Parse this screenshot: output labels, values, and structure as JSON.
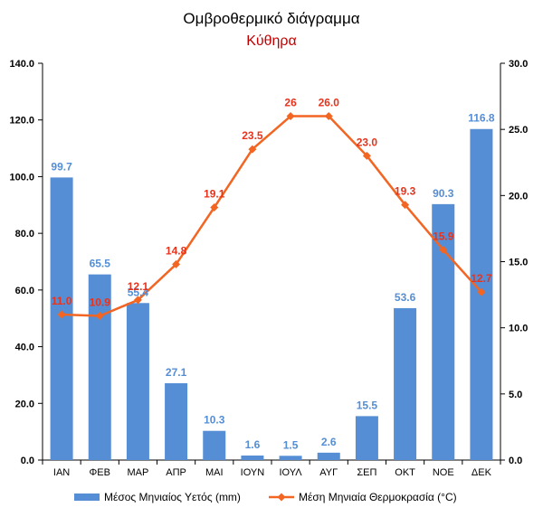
{
  "chart_data": {
    "type": "bar",
    "title": "Ομβροθερμικό διάγραμμα",
    "subtitle": "Κύθηρα",
    "categories": [
      "ΙΑΝ",
      "ΦΕΒ",
      "ΜΑΡ",
      "ΑΠΡ",
      "ΜΑΙ",
      "ΙΟΥΝ",
      "ΙΟΥΛ",
      "ΑΥΓ",
      "ΣΕΠ",
      "ΟΚΤ",
      "ΝΟΕ",
      "ΔΕΚ"
    ],
    "series": [
      {
        "name": "Μέσος Μηνιαίος Υετός (mm)",
        "type": "bar",
        "axis": "left",
        "color": "#558ed5",
        "label_color": "#558ed5",
        "values": [
          99.7,
          65.5,
          55.4,
          27.1,
          10.3,
          1.6,
          1.5,
          2.6,
          15.5,
          53.6,
          90.3,
          116.8
        ],
        "labels": [
          "99.7",
          "65.5",
          "55.4",
          "27.1",
          "10.3",
          "1.6",
          "1.5",
          "2.6",
          "15.5",
          "53.6",
          "90.3",
          "116.8"
        ]
      },
      {
        "name": "Μέση Μηνιαία Θερμοκρασία (°C)",
        "type": "line",
        "axis": "right",
        "color": "#f26522",
        "label_color": "#e8331c",
        "values": [
          11.0,
          10.9,
          12.1,
          14.8,
          19.1,
          23.5,
          26.0,
          26.0,
          23.0,
          19.3,
          15.9,
          12.7
        ],
        "labels": [
          "11.0",
          "10.9",
          "12.1",
          "14.8",
          "19.1",
          "23.5",
          "26",
          "26.0",
          "23.0",
          "19.3",
          "15.9",
          "12.7"
        ]
      }
    ],
    "y_left": {
      "min": 0,
      "max": 140,
      "ticks": [
        0,
        20,
        40,
        60,
        80,
        100,
        120,
        140
      ],
      "tick_labels": [
        "0.0",
        "20.0",
        "40.0",
        "60.0",
        "80.0",
        "100.0",
        "120.0",
        "140.0"
      ]
    },
    "y_right": {
      "min": 0,
      "max": 30,
      "ticks": [
        0,
        5,
        10,
        15,
        20,
        25,
        30
      ],
      "tick_labels": [
        "0.0",
        "5.0",
        "10.0",
        "15.0",
        "20.0",
        "25.0",
        "30.0"
      ]
    },
    "grid": false,
    "legend_position": "bottom",
    "axis_color": "#000000"
  }
}
